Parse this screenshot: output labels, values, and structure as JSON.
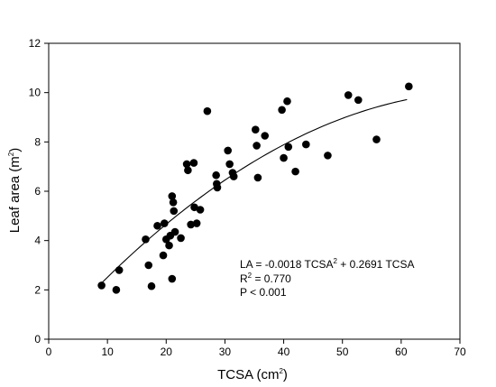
{
  "chart_data": {
    "type": "scatter",
    "xlabel": "TCSA",
    "xlabel_unit": "(cm",
    "xlabel_sup": "2",
    "xlabel_close": ")",
    "ylabel": "Leaf area",
    "ylabel_unit": "(m",
    "ylabel_sup": "2",
    "ylabel_close": ")",
    "xlim": [
      0,
      70
    ],
    "ylim": [
      0,
      12
    ],
    "xticks": [
      "0",
      "10",
      "20",
      "30",
      "40",
      "50",
      "60",
      "70"
    ],
    "yticks": [
      "0",
      "2",
      "4",
      "6",
      "8",
      "10",
      "12"
    ],
    "points": [
      {
        "x": 9.0,
        "y": 2.18
      },
      {
        "x": 11.5,
        "y": 2.0
      },
      {
        "x": 12.0,
        "y": 2.8
      },
      {
        "x": 16.5,
        "y": 4.05
      },
      {
        "x": 17.0,
        "y": 3.0
      },
      {
        "x": 17.5,
        "y": 2.15
      },
      {
        "x": 18.5,
        "y": 4.6
      },
      {
        "x": 19.5,
        "y": 3.4
      },
      {
        "x": 19.7,
        "y": 4.7
      },
      {
        "x": 20.0,
        "y": 4.05
      },
      {
        "x": 20.5,
        "y": 3.8
      },
      {
        "x": 20.7,
        "y": 4.2
      },
      {
        "x": 21.0,
        "y": 2.45
      },
      {
        "x": 21.0,
        "y": 5.8
      },
      {
        "x": 21.2,
        "y": 5.55
      },
      {
        "x": 21.3,
        "y": 5.2
      },
      {
        "x": 21.5,
        "y": 4.35
      },
      {
        "x": 22.5,
        "y": 4.1
      },
      {
        "x": 23.5,
        "y": 7.1
      },
      {
        "x": 23.7,
        "y": 6.85
      },
      {
        "x": 24.2,
        "y": 4.65
      },
      {
        "x": 24.7,
        "y": 7.15
      },
      {
        "x": 24.8,
        "y": 5.35
      },
      {
        "x": 25.2,
        "y": 4.7
      },
      {
        "x": 25.8,
        "y": 5.25
      },
      {
        "x": 27.0,
        "y": 9.25
      },
      {
        "x": 28.5,
        "y": 6.65
      },
      {
        "x": 28.6,
        "y": 6.3
      },
      {
        "x": 28.7,
        "y": 6.15
      },
      {
        "x": 30.5,
        "y": 7.65
      },
      {
        "x": 30.8,
        "y": 7.1
      },
      {
        "x": 31.3,
        "y": 6.75
      },
      {
        "x": 31.5,
        "y": 6.6
      },
      {
        "x": 35.2,
        "y": 8.5
      },
      {
        "x": 35.4,
        "y": 7.85
      },
      {
        "x": 35.6,
        "y": 6.55
      },
      {
        "x": 36.8,
        "y": 8.25
      },
      {
        "x": 39.7,
        "y": 9.3
      },
      {
        "x": 40.0,
        "y": 7.35
      },
      {
        "x": 40.6,
        "y": 9.65
      },
      {
        "x": 40.8,
        "y": 7.8
      },
      {
        "x": 42.0,
        "y": 6.8
      },
      {
        "x": 43.8,
        "y": 7.9
      },
      {
        "x": 47.5,
        "y": 7.45
      },
      {
        "x": 51.0,
        "y": 9.9
      },
      {
        "x": 52.7,
        "y": 9.7
      },
      {
        "x": 55.8,
        "y": 8.1
      },
      {
        "x": 61.3,
        "y": 10.25
      }
    ],
    "fit": {
      "type": "polynomial",
      "a2": -0.0018,
      "a1": 0.2691,
      "a0": 0,
      "x_range": [
        9,
        61
      ]
    },
    "annotations": {
      "eq_main": "LA = -0.0018 TCSA",
      "eq_sup": "2",
      "eq_tail": " + 0.2691 TCSA",
      "r2_label": "R",
      "r2_sup": "2",
      "r2_value": " = 0.770",
      "p_value": "P < 0.001"
    }
  }
}
